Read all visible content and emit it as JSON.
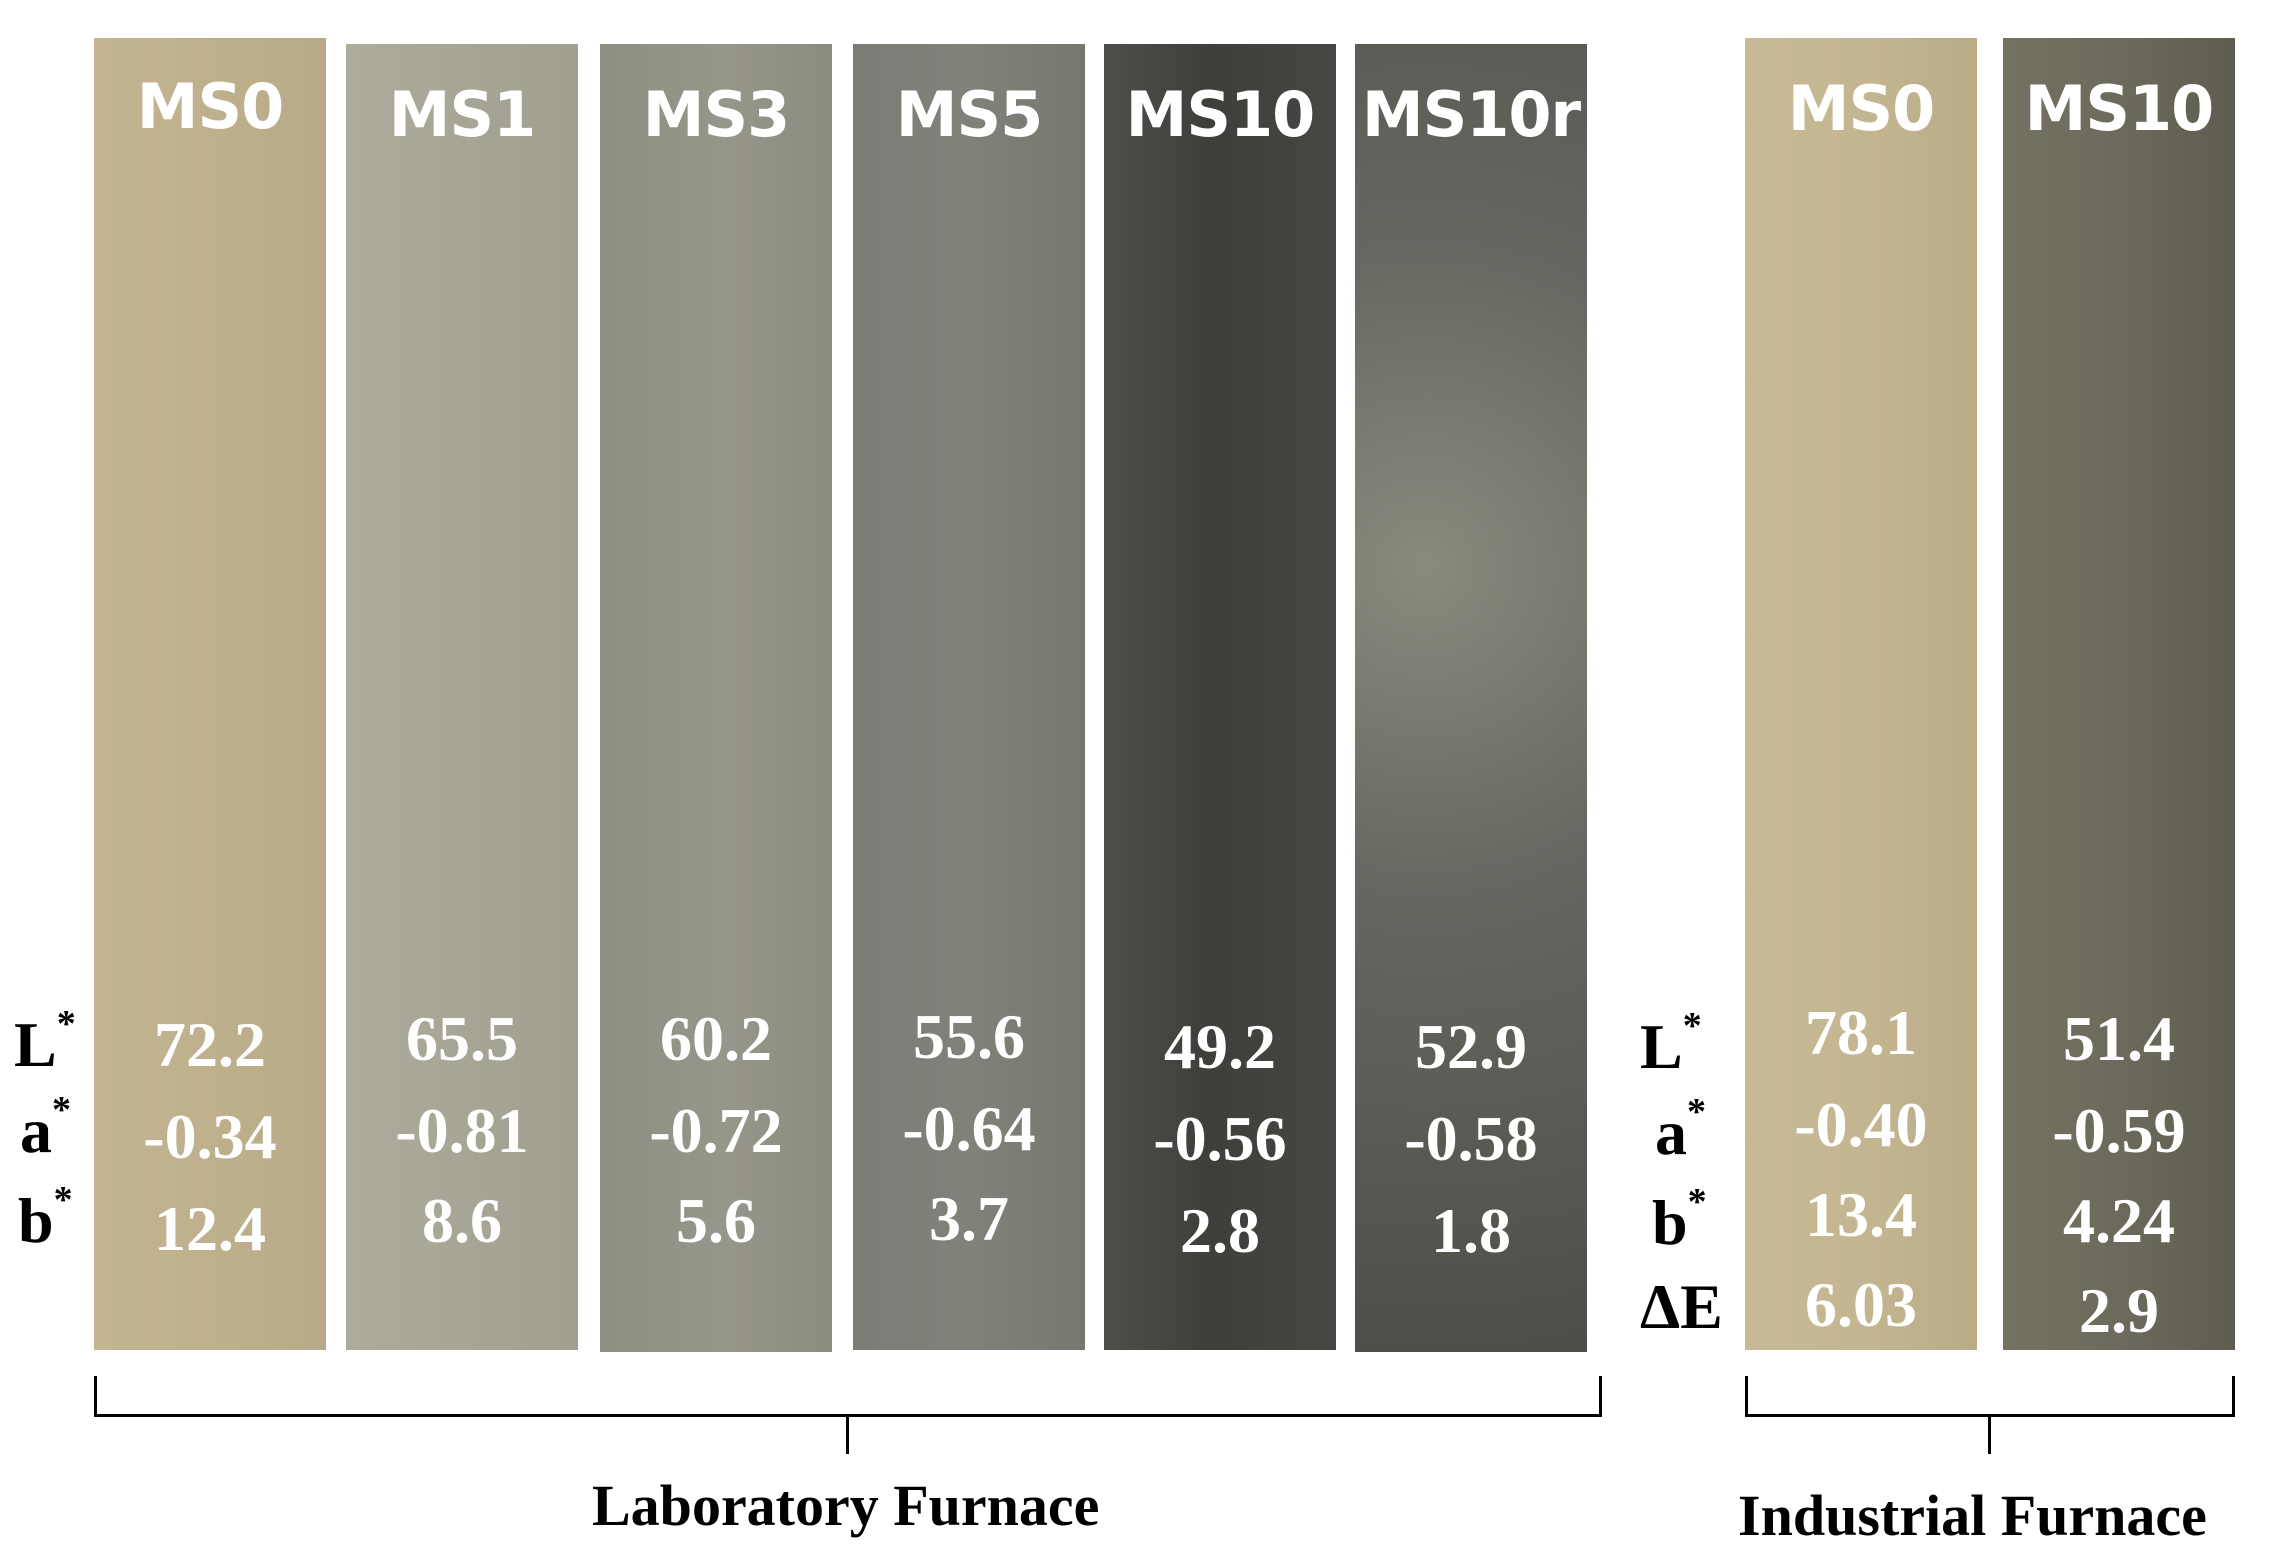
{
  "row_labels": {
    "lab": {
      "L": "L",
      "a": "a",
      "b": "b",
      "sup": "*"
    },
    "ind": {
      "L": "L",
      "a": "a",
      "b": "b",
      "dE": "ΔE",
      "sup": "*"
    }
  },
  "laboratory": {
    "label": "Laboratory Furnace",
    "samples": [
      {
        "name": "MS0",
        "L": "72.2",
        "a": "-0.34",
        "b": "12.4",
        "color": "#bfb190"
      },
      {
        "name": "MS1",
        "L": "65.5",
        "a": "-0.81",
        "b": "8.6",
        "color": "#a6a595"
      },
      {
        "name": "MS3",
        "L": "60.2",
        "a": "-0.72",
        "b": "5.6",
        "color": "#909083"
      },
      {
        "name": "MS5",
        "L": "55.6",
        "a": "-0.64",
        "b": "3.7",
        "color": "#7b7d76"
      },
      {
        "name": "MS10",
        "L": "49.2",
        "a": "-0.56",
        "b": "2.8",
        "color": "#4b4c47"
      },
      {
        "name": "MS10r",
        "L": "52.9",
        "a": "-0.58",
        "b": "1.8",
        "color": "#67685f"
      }
    ]
  },
  "industrial": {
    "label": "Industrial Furnace",
    "samples": [
      {
        "name": "MS0",
        "L": "78.1",
        "a": "-0.40",
        "b": "13.4",
        "dE": "6.03",
        "color": "#c6b793"
      },
      {
        "name": "MS10",
        "L": "51.4",
        "a": "-0.59",
        "b": "4.24",
        "dE": "2.9",
        "color": "#6d6a5c"
      }
    ]
  }
}
